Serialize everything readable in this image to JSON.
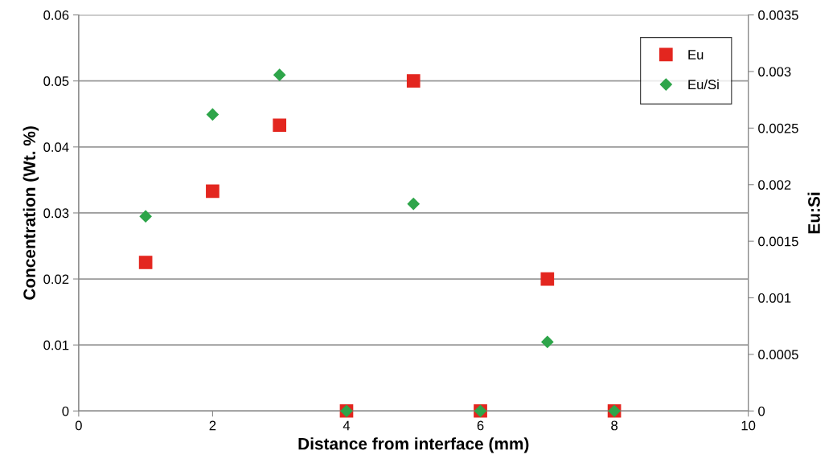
{
  "chart_data": {
    "type": "scatter",
    "xlabel": "Distance from interface (mm)",
    "ylabel": "Concentration (Wt. %)",
    "y2label": "Eu:Si",
    "x": [
      1,
      2,
      3,
      4,
      5,
      6,
      7,
      8
    ],
    "series": [
      {
        "name": "Eu",
        "color": "#e3261f",
        "marker": "square",
        "values": [
          0.0225,
          0.0333,
          0.0433,
          0,
          0.05,
          0,
          0.02,
          0
        ]
      },
      {
        "name": "Eu/Si",
        "color": "#2ea54a",
        "marker": "diamond",
        "axis": "y2",
        "values": [
          0.00172,
          0.00262,
          0.00297,
          0,
          0.00183,
          0,
          0.00061,
          0
        ]
      }
    ],
    "xlim": [
      0,
      10
    ],
    "xticks": [
      0,
      2,
      4,
      6,
      8,
      10
    ],
    "ylim": [
      0,
      0.06
    ],
    "yticks": [
      0,
      0.01,
      0.02,
      0.03,
      0.04,
      0.05,
      0.06
    ],
    "y2lim": [
      0,
      0.0035
    ],
    "y2ticks": [
      0,
      0.0005,
      0.001,
      0.0015,
      0.002,
      0.0025,
      0.003,
      0.0035
    ],
    "grid": "y",
    "legend": "top right"
  }
}
